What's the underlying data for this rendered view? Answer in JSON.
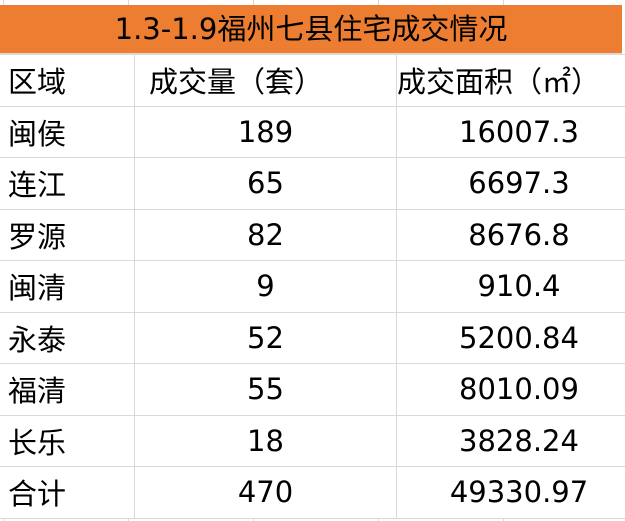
{
  "title": "1.3-1.9福州七县住宅成交情况",
  "colors": {
    "header_bg": "#ED7D31",
    "grid": "#D9D9D9"
  },
  "columns": [
    "区域",
    "成交量（套）",
    "成交面积（㎡）"
  ],
  "rows": [
    {
      "region": "闽侯",
      "count": "189",
      "area": "16007.3"
    },
    {
      "region": "连江",
      "count": "65",
      "area": "6697.3"
    },
    {
      "region": "罗源",
      "count": "82",
      "area": "8676.8"
    },
    {
      "region": "闽清",
      "count": "9",
      "area": "910.4"
    },
    {
      "region": "永泰",
      "count": "52",
      "area": "5200.84"
    },
    {
      "region": "福清",
      "count": "55",
      "area": "8010.09"
    },
    {
      "region": "长乐",
      "count": "18",
      "area": "3828.24"
    },
    {
      "region": "合计",
      "count": "470",
      "area": "49330.97"
    }
  ]
}
